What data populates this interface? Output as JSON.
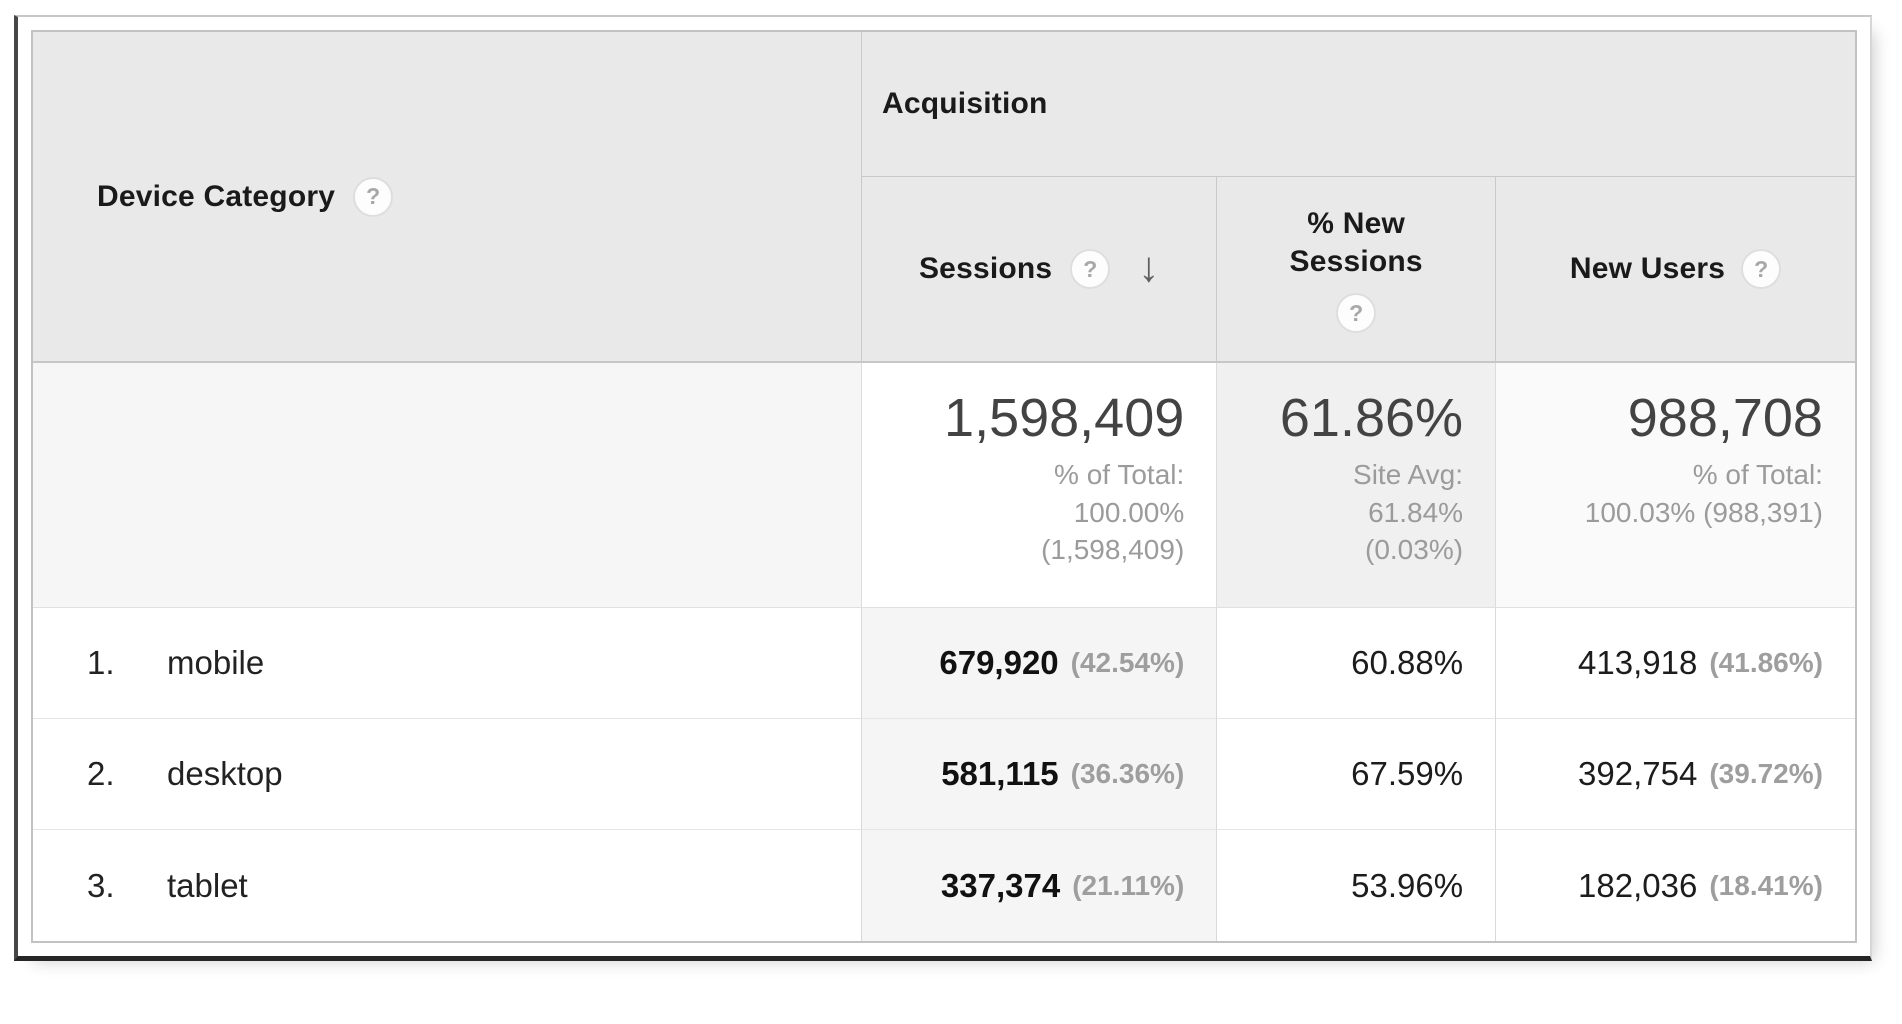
{
  "colors": {
    "header_background": "#e9e9e9",
    "sorted_column_highlight": "#f5f5f5",
    "summary_shaded_cell": "#f0f0f0",
    "muted_text": "#9b9b9b"
  },
  "icons": {
    "help": "?",
    "sort_descending": "↓"
  },
  "table": {
    "dimension_column": {
      "label": "Device Category"
    },
    "metric_group": {
      "label": "Acquisition"
    },
    "metric_columns": [
      {
        "label": "Sessions",
        "sorted": "descending"
      },
      {
        "label": "% New Sessions",
        "sorted": "none"
      },
      {
        "label": "New Users",
        "sorted": "none"
      }
    ],
    "summary_row": {
      "sessions": {
        "value": "1,598,409",
        "note": "% of Total:\n100.00%\n(1,598,409)"
      },
      "percent_new_sessions": {
        "value": "61.86%",
        "note": "Site Avg:\n61.84%\n(0.03%)"
      },
      "new_users": {
        "value": "988,708",
        "note": "% of Total:\n100.03% (988,391)"
      }
    },
    "rows": [
      {
        "rank": "1.",
        "device": "mobile",
        "sessions": "679,920",
        "sessions_share": "(42.54%)",
        "percent_new_sessions": "60.88%",
        "new_users": "413,918",
        "new_users_share": "(41.86%)"
      },
      {
        "rank": "2.",
        "device": "desktop",
        "sessions": "581,115",
        "sessions_share": "(36.36%)",
        "percent_new_sessions": "67.59%",
        "new_users": "392,754",
        "new_users_share": "(39.72%)"
      },
      {
        "rank": "3.",
        "device": "tablet",
        "sessions": "337,374",
        "sessions_share": "(21.11%)",
        "percent_new_sessions": "53.96%",
        "new_users": "182,036",
        "new_users_share": "(18.41%)"
      }
    ]
  }
}
